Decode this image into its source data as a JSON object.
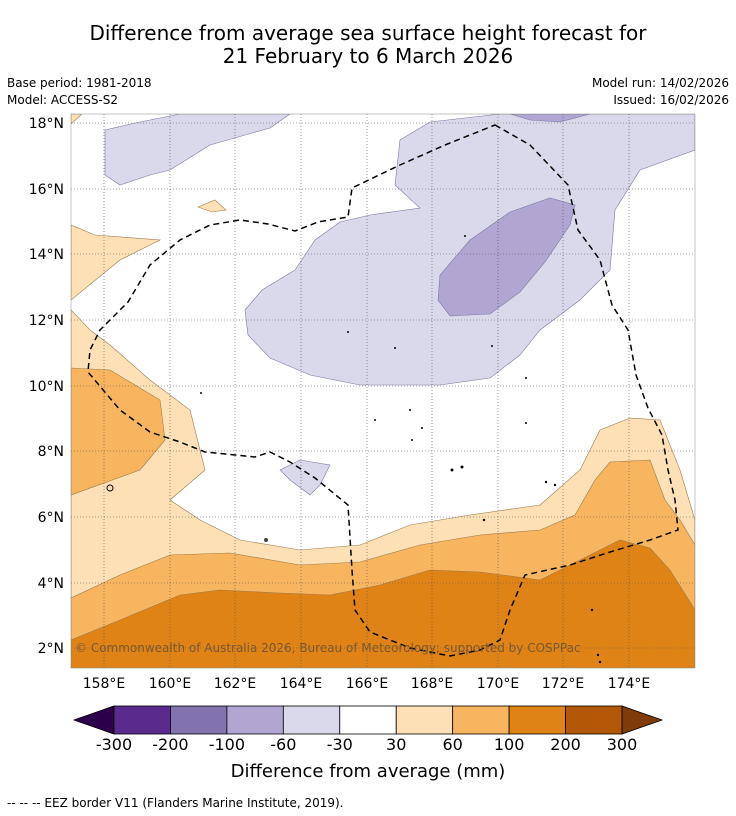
{
  "title_line1": "Difference from average sea surface height forecast for",
  "title_line2": "21 February to 6 March 2026",
  "base_period": "Base period: 1981-2018",
  "model": "Model: ACCESS-S2",
  "model_run": "Model run: 14/02/2026",
  "issued": "Issued: 16/02/2026",
  "copyright": "© Commonwealth of Australia 2026, Bureau of Meteorology; supported by COSPPac",
  "footnote": "--  --  -- EEZ border V11 (Flanders Marine Institute, 2019).",
  "lat_labels": [
    "18°N",
    "16°N",
    "14°N",
    "12°N",
    "10°N",
    "8°N",
    "6°N",
    "4°N",
    "2°N"
  ],
  "lon_labels": [
    "158°E",
    "160°E",
    "162°E",
    "164°E",
    "166°E",
    "168°E",
    "170°E",
    "172°E",
    "174°E"
  ],
  "colorbar": {
    "title": "Difference from average (mm)",
    "tick_labels": [
      "-300",
      "-200",
      "-100",
      "-60",
      "-30",
      "30",
      "60",
      "100",
      "200",
      "300"
    ],
    "colors": [
      "#2d004b",
      "#5a2b8c",
      "#8372b0",
      "#b0a6d1",
      "#d9d9eb",
      "#ffffff",
      "#fde0b6",
      "#f8b55f",
      "#e08316",
      "#b35806",
      "#7f3b08"
    ]
  }
}
